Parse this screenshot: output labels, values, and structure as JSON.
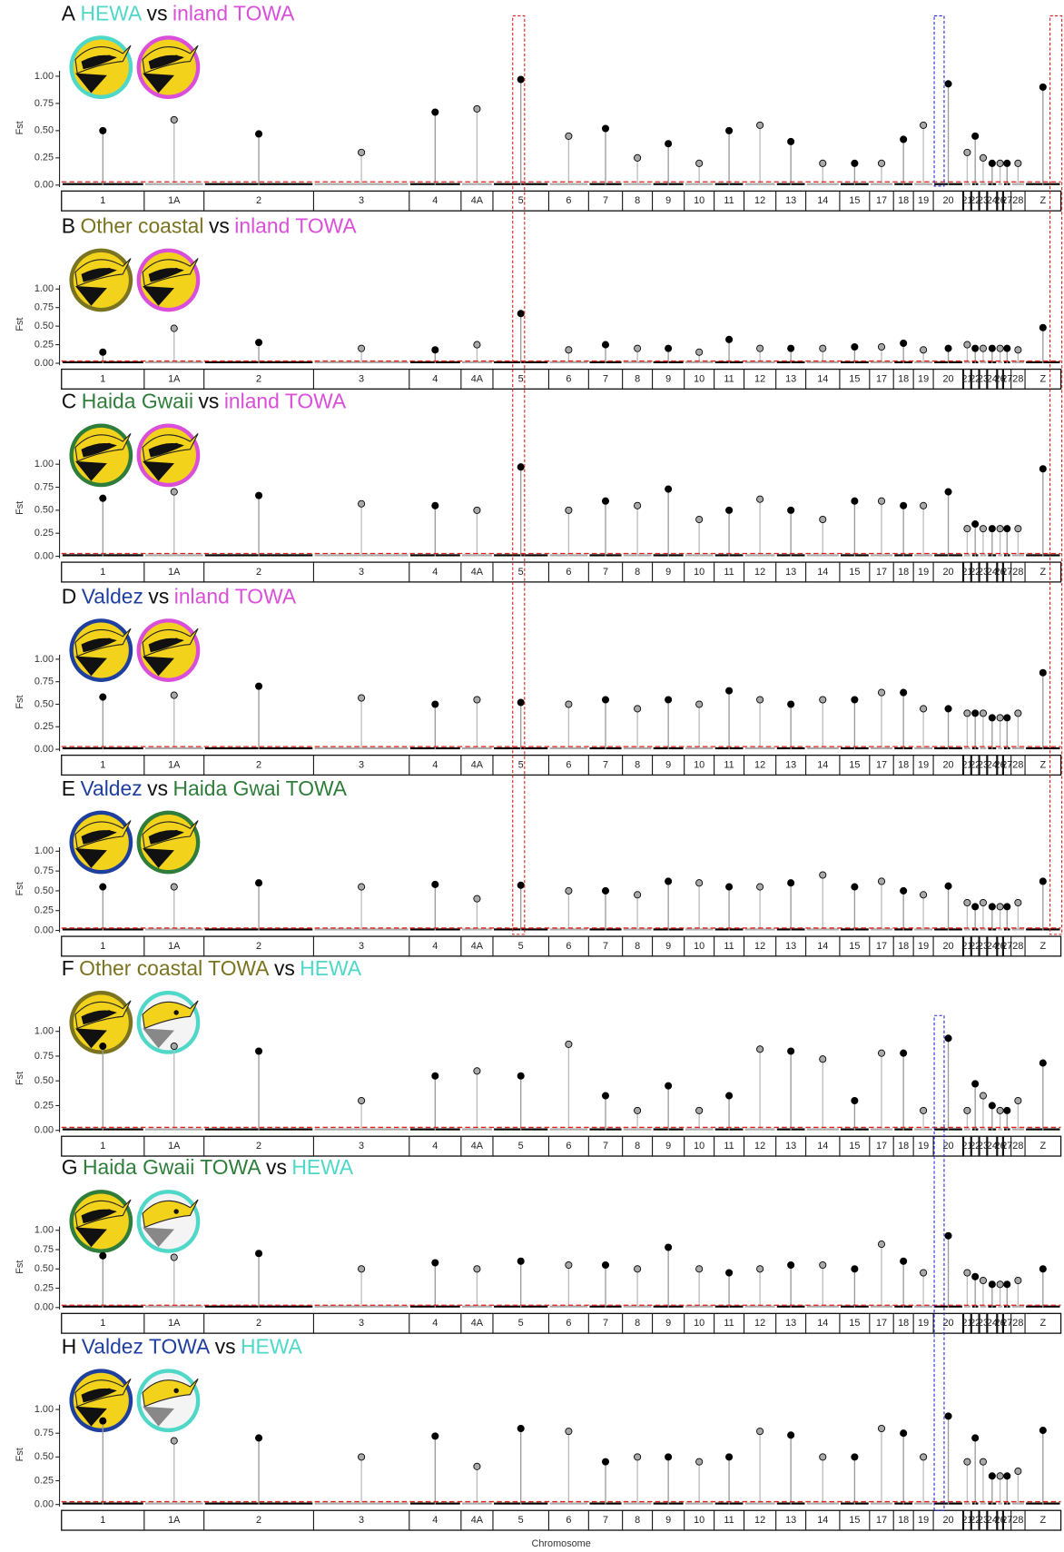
{
  "chart_data": [
    {
      "type": "manhattan",
      "title_parts": [
        {
          "text": "A",
          "color": "#111111"
        },
        {
          "text": "HEWA",
          "color": "#4fd8c8"
        },
        {
          "text": "vs",
          "color": "#111111"
        },
        {
          "text": "inland TOWA",
          "color": "#d94fd9"
        }
      ],
      "ylabel": "Fst",
      "categories": [
        "1",
        "1A",
        "2",
        "3",
        "4",
        "4A",
        "5",
        "6",
        "7",
        "8",
        "9",
        "10",
        "11",
        "12",
        "13",
        "14",
        "15",
        "17",
        "18",
        "19",
        "20",
        "21",
        "22",
        "23",
        "24",
        "26",
        "27",
        "28",
        "Z"
      ],
      "values": [
        0.5,
        0.6,
        0.47,
        0.3,
        0.67,
        0.7,
        0.97,
        0.45,
        0.52,
        0.25,
        0.38,
        0.2,
        0.5,
        0.55,
        0.4,
        0.2,
        0.2,
        0.2,
        0.42,
        0.55,
        0.93,
        0.3,
        0.45,
        0.25,
        0.2,
        0.2,
        0.2,
        0.2,
        0.9
      ],
      "threshold": 0.03,
      "ylim": [
        0,
        1.05
      ],
      "yticks": [
        {
          "value": 0,
          "label": "0.00"
        },
        {
          "value": 0.25,
          "label": "0.25"
        },
        {
          "value": 0.5,
          "label": "0.50"
        },
        {
          "value": 0.75,
          "label": "0.75"
        },
        {
          "value": 1,
          "label": "1.00"
        }
      ],
      "colors": [
        "#000000",
        "#a9a9a9"
      ],
      "threshold_color": "#e0201b"
    },
    {
      "type": "manhattan",
      "title_parts": [
        {
          "text": "B",
          "color": "#111111"
        },
        {
          "text": "Other coastal",
          "color": "#7a7320"
        },
        {
          "text": "vs",
          "color": "#111111"
        },
        {
          "text": "inland TOWA",
          "color": "#d94fd9"
        }
      ],
      "ylabel": "Fst",
      "categories": [
        "1",
        "1A",
        "2",
        "3",
        "4",
        "4A",
        "5",
        "6",
        "7",
        "8",
        "9",
        "10",
        "11",
        "12",
        "13",
        "14",
        "15",
        "17",
        "18",
        "19",
        "20",
        "21",
        "22",
        "23",
        "24",
        "26",
        "27",
        "28",
        "Z"
      ],
      "values": [
        0.15,
        0.47,
        0.28,
        0.2,
        0.18,
        0.25,
        0.67,
        0.18,
        0.25,
        0.2,
        0.2,
        0.15,
        0.32,
        0.2,
        0.2,
        0.2,
        0.22,
        0.22,
        0.27,
        0.18,
        0.2,
        0.25,
        0.2,
        0.2,
        0.2,
        0.2,
        0.2,
        0.18,
        0.48
      ],
      "threshold": 0.03,
      "ylim": [
        0,
        1.05
      ],
      "yticks": [
        {
          "value": 0,
          "label": "0.00"
        },
        {
          "value": 0.25,
          "label": "0.25"
        },
        {
          "value": 0.5,
          "label": "0.50"
        },
        {
          "value": 0.75,
          "label": "0.75"
        },
        {
          "value": 1,
          "label": "1.00"
        }
      ],
      "colors": [
        "#000000",
        "#a9a9a9"
      ],
      "threshold_color": "#e0201b"
    },
    {
      "type": "manhattan",
      "title_parts": [
        {
          "text": "C",
          "color": "#111111"
        },
        {
          "text": "Haida Gwaii",
          "color": "#2e7d3a"
        },
        {
          "text": "vs",
          "color": "#111111"
        },
        {
          "text": "inland TOWA",
          "color": "#d94fd9"
        }
      ],
      "ylabel": "Fst",
      "categories": [
        "1",
        "1A",
        "2",
        "3",
        "4",
        "4A",
        "5",
        "6",
        "7",
        "8",
        "9",
        "10",
        "11",
        "12",
        "13",
        "14",
        "15",
        "17",
        "18",
        "19",
        "20",
        "21",
        "22",
        "23",
        "24",
        "26",
        "27",
        "28",
        "Z"
      ],
      "values": [
        0.63,
        0.7,
        0.66,
        0.57,
        0.55,
        0.5,
        0.97,
        0.5,
        0.6,
        0.55,
        0.73,
        0.4,
        0.5,
        0.62,
        0.5,
        0.4,
        0.6,
        0.6,
        0.55,
        0.55,
        0.7,
        0.3,
        0.35,
        0.3,
        0.3,
        0.3,
        0.3,
        0.3,
        0.95
      ],
      "threshold": 0.03,
      "ylim": [
        0,
        1.05
      ],
      "yticks": [
        {
          "value": 0,
          "label": "0.00"
        },
        {
          "value": 0.25,
          "label": "0.25"
        },
        {
          "value": 0.5,
          "label": "0.50"
        },
        {
          "value": 0.75,
          "label": "0.75"
        },
        {
          "value": 1,
          "label": "1.00"
        }
      ],
      "colors": [
        "#000000",
        "#a9a9a9"
      ],
      "threshold_color": "#e0201b"
    },
    {
      "type": "manhattan",
      "title_parts": [
        {
          "text": "D",
          "color": "#111111"
        },
        {
          "text": "Valdez",
          "color": "#1f3f9e"
        },
        {
          "text": "vs",
          "color": "#111111"
        },
        {
          "text": "inland TOWA",
          "color": "#d94fd9"
        }
      ],
      "ylabel": "Fst",
      "categories": [
        "1",
        "1A",
        "2",
        "3",
        "4",
        "4A",
        "5",
        "6",
        "7",
        "8",
        "9",
        "10",
        "11",
        "12",
        "13",
        "14",
        "15",
        "17",
        "18",
        "19",
        "20",
        "21",
        "22",
        "23",
        "24",
        "26",
        "27",
        "28",
        "Z"
      ],
      "values": [
        0.58,
        0.6,
        0.7,
        0.57,
        0.5,
        0.55,
        0.52,
        0.5,
        0.55,
        0.45,
        0.55,
        0.5,
        0.65,
        0.55,
        0.5,
        0.55,
        0.55,
        0.63,
        0.63,
        0.45,
        0.45,
        0.4,
        0.4,
        0.4,
        0.35,
        0.35,
        0.35,
        0.4,
        0.85
      ],
      "threshold": 0.03,
      "ylim": [
        0,
        1.05
      ],
      "yticks": [
        {
          "value": 0,
          "label": "0.00"
        },
        {
          "value": 0.25,
          "label": "0.25"
        },
        {
          "value": 0.5,
          "label": "0.50"
        },
        {
          "value": 0.75,
          "label": "0.75"
        },
        {
          "value": 1,
          "label": "1.00"
        }
      ],
      "colors": [
        "#000000",
        "#a9a9a9"
      ],
      "threshold_color": "#e0201b"
    },
    {
      "type": "manhattan",
      "title_parts": [
        {
          "text": "E",
          "color": "#111111"
        },
        {
          "text": "Valdez",
          "color": "#1f3f9e"
        },
        {
          "text": "vs",
          "color": "#111111"
        },
        {
          "text": "Haida Gwai TOWA",
          "color": "#2e7d3a"
        }
      ],
      "ylabel": "Fst",
      "categories": [
        "1",
        "1A",
        "2",
        "3",
        "4",
        "4A",
        "5",
        "6",
        "7",
        "8",
        "9",
        "10",
        "11",
        "12",
        "13",
        "14",
        "15",
        "17",
        "18",
        "19",
        "20",
        "21",
        "22",
        "23",
        "24",
        "26",
        "27",
        "28",
        "Z"
      ],
      "values": [
        0.55,
        0.55,
        0.6,
        0.55,
        0.58,
        0.4,
        0.57,
        0.5,
        0.5,
        0.45,
        0.62,
        0.6,
        0.55,
        0.55,
        0.6,
        0.7,
        0.55,
        0.62,
        0.5,
        0.45,
        0.56,
        0.35,
        0.3,
        0.35,
        0.3,
        0.3,
        0.3,
        0.35,
        0.62
      ],
      "threshold": 0.03,
      "ylim": [
        0,
        1.05
      ],
      "yticks": [
        {
          "value": 0,
          "label": "0.00"
        },
        {
          "value": 0.25,
          "label": "0.25"
        },
        {
          "value": 0.5,
          "label": "0.50"
        },
        {
          "value": 0.75,
          "label": "0.75"
        },
        {
          "value": 1,
          "label": "1.00"
        }
      ],
      "colors": [
        "#000000",
        "#a9a9a9"
      ],
      "threshold_color": "#e0201b"
    },
    {
      "type": "manhattan",
      "title_parts": [
        {
          "text": "F",
          "color": "#111111"
        },
        {
          "text": "Other coastal TOWA",
          "color": "#7a7320"
        },
        {
          "text": "vs",
          "color": "#111111"
        },
        {
          "text": "HEWA",
          "color": "#4fd8c8"
        }
      ],
      "ylabel": "Fst",
      "categories": [
        "1",
        "1A",
        "2",
        "3",
        "4",
        "4A",
        "5",
        "6",
        "7",
        "8",
        "9",
        "10",
        "11",
        "12",
        "13",
        "14",
        "15",
        "17",
        "18",
        "19",
        "20",
        "21",
        "22",
        "23",
        "24",
        "26",
        "27",
        "28",
        "Z"
      ],
      "values": [
        0.85,
        0.85,
        0.8,
        0.3,
        0.55,
        0.6,
        0.55,
        0.87,
        0.35,
        0.2,
        0.45,
        0.2,
        0.35,
        0.82,
        0.8,
        0.72,
        0.3,
        0.78,
        0.78,
        0.2,
        0.93,
        0.2,
        0.47,
        0.35,
        0.25,
        0.2,
        0.2,
        0.3,
        0.68
      ],
      "threshold": 0.03,
      "ylim": [
        0,
        1.05
      ],
      "yticks": [
        {
          "value": 0,
          "label": "0.00"
        },
        {
          "value": 0.25,
          "label": "0.25"
        },
        {
          "value": 0.5,
          "label": "0.50"
        },
        {
          "value": 0.75,
          "label": "0.75"
        },
        {
          "value": 1,
          "label": "1.00"
        }
      ],
      "colors": [
        "#000000",
        "#a9a9a9"
      ],
      "threshold_color": "#e0201b"
    },
    {
      "type": "manhattan",
      "title_parts": [
        {
          "text": "G",
          "color": "#111111"
        },
        {
          "text": "Haida Gwaii TOWA",
          "color": "#2e7d3a"
        },
        {
          "text": "vs",
          "color": "#111111"
        },
        {
          "text": "HEWA",
          "color": "#4fd8c8"
        }
      ],
      "ylabel": "Fst",
      "categories": [
        "1",
        "1A",
        "2",
        "3",
        "4",
        "4A",
        "5",
        "6",
        "7",
        "8",
        "9",
        "10",
        "11",
        "12",
        "13",
        "14",
        "15",
        "17",
        "18",
        "19",
        "20",
        "21",
        "22",
        "23",
        "24",
        "26",
        "27",
        "28",
        "Z"
      ],
      "values": [
        0.67,
        0.65,
        0.7,
        0.5,
        0.58,
        0.5,
        0.6,
        0.55,
        0.55,
        0.5,
        0.78,
        0.5,
        0.45,
        0.5,
        0.55,
        0.55,
        0.5,
        0.82,
        0.6,
        0.45,
        0.93,
        0.45,
        0.4,
        0.35,
        0.3,
        0.3,
        0.3,
        0.35,
        0.5
      ],
      "threshold": 0.03,
      "ylim": [
        0,
        1.05
      ],
      "yticks": [
        {
          "value": 0,
          "label": "0.00"
        },
        {
          "value": 0.25,
          "label": "0.25"
        },
        {
          "value": 0.5,
          "label": "0.50"
        },
        {
          "value": 0.75,
          "label": "0.75"
        },
        {
          "value": 1,
          "label": "1.00"
        }
      ],
      "colors": [
        "#000000",
        "#a9a9a9"
      ],
      "threshold_color": "#e0201b"
    },
    {
      "type": "manhattan",
      "title_parts": [
        {
          "text": "H",
          "color": "#111111"
        },
        {
          "text": "Valdez TOWA",
          "color": "#1f3f9e"
        },
        {
          "text": "vs",
          "color": "#111111"
        },
        {
          "text": "HEWA",
          "color": "#4fd8c8"
        }
      ],
      "ylabel": "Fst",
      "xlabel": "Chromosome",
      "categories": [
        "1",
        "1A",
        "2",
        "3",
        "4",
        "4A",
        "5",
        "6",
        "7",
        "8",
        "9",
        "10",
        "11",
        "12",
        "13",
        "14",
        "15",
        "17",
        "18",
        "19",
        "20",
        "21",
        "22",
        "23",
        "24",
        "26",
        "27",
        "28",
        "Z"
      ],
      "values": [
        0.88,
        0.67,
        0.7,
        0.5,
        0.72,
        0.4,
        0.8,
        0.77,
        0.45,
        0.5,
        0.5,
        0.45,
        0.5,
        0.77,
        0.73,
        0.5,
        0.5,
        0.8,
        0.75,
        0.5,
        0.93,
        0.45,
        0.7,
        0.45,
        0.3,
        0.3,
        0.3,
        0.35,
        0.78
      ],
      "threshold": 0.03,
      "ylim": [
        0,
        1.05
      ],
      "yticks": [
        {
          "value": 0,
          "label": "0.00"
        },
        {
          "value": 0.25,
          "label": "0.25"
        },
        {
          "value": 0.5,
          "label": "0.50"
        },
        {
          "value": 0.75,
          "label": "0.75"
        },
        {
          "value": 1,
          "label": "1.00"
        }
      ],
      "colors": [
        "#000000",
        "#a9a9a9"
      ],
      "threshold_color": "#e0201b"
    }
  ]
}
